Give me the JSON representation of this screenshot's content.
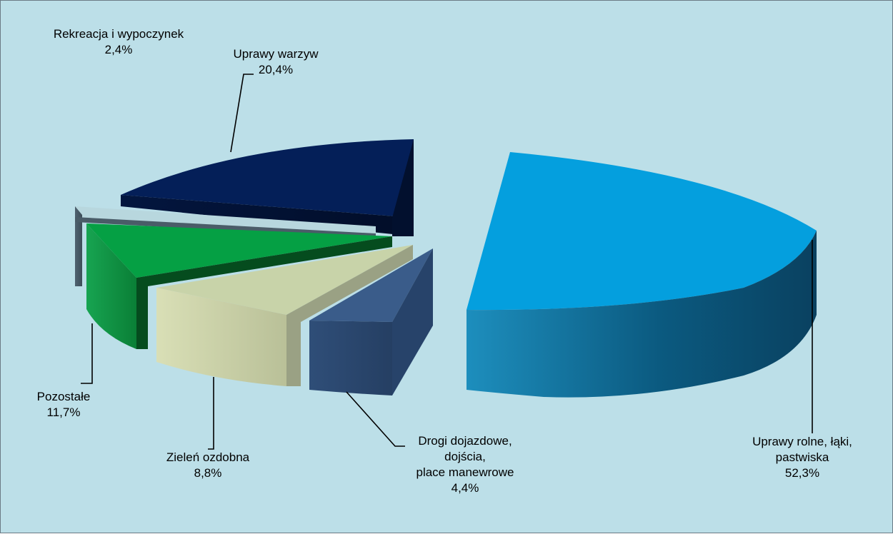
{
  "chart_data": {
    "type": "pie",
    "style": "3d-exploded",
    "slices": [
      {
        "name": "Uprawy rolne, łąki, pastwiska",
        "label_lines": [
          "Uprawy rolne, łąki,",
          "pastwiska"
        ],
        "value": 52.3,
        "value_text": "52,3%",
        "color": "#049fde"
      },
      {
        "name": "Drogi dojazdowe, dojścia, place manewrowe",
        "label_lines": [
          "Drogi dojazdowe,",
          "dojścia,",
          "place manewrowe"
        ],
        "value": 4.4,
        "value_text": "4,4%",
        "color": "#3a5c8a"
      },
      {
        "name": "Zieleń ozdobna",
        "label_lines": [
          "Zieleń ozdobna"
        ],
        "value": 8.8,
        "value_text": "8,8%",
        "color": "#c8d3a9"
      },
      {
        "name": "Pozostałe",
        "label_lines": [
          "Pozostałe"
        ],
        "value": 11.7,
        "value_text": "11,7%",
        "color": "#05a044"
      },
      {
        "name": "Rekreacja i wypoczynek",
        "label_lines": [
          "Rekreacja i wypoczynek"
        ],
        "value": 2.4,
        "value_text": "2,4%",
        "color": "#b8d7de"
      },
      {
        "name": "Uprawy warzyw",
        "label_lines": [
          "Uprawy warzyw"
        ],
        "value": 20.4,
        "value_text": "20,4%",
        "color": "#041f58"
      }
    ],
    "legend": "none",
    "background_color": "#bcdfe8"
  }
}
